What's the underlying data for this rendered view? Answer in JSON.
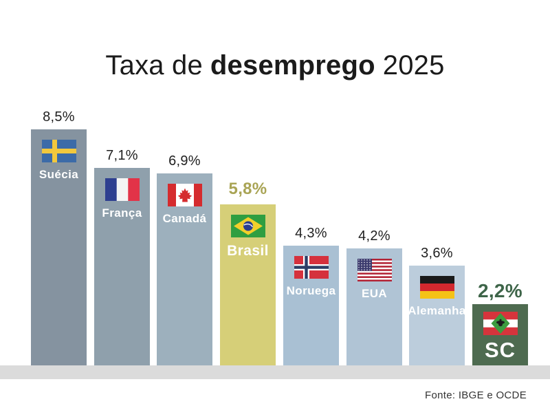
{
  "title": {
    "prefix": "Taxa de",
    "highlight": "desemprego",
    "suffix": "2025"
  },
  "footer": {
    "source": "Fonte: IBGE e OCDE"
  },
  "colors": {
    "background": "#ffffff",
    "floor": "#dbdbdb",
    "title": "#1b1b1b",
    "footer": "#333333",
    "brasil_accent": "#a9a455",
    "sc_accent": "#3e6549"
  },
  "chart_data": {
    "type": "bar",
    "title": "Taxa de desemprego 2025",
    "unit": "percent",
    "ylim": [
      0,
      9
    ],
    "grid": false,
    "legend": "none",
    "source": "Fonte: IBGE e OCDE",
    "categories": [
      "Suécia",
      "França",
      "Canadá",
      "Brasil",
      "Noruega",
      "EUA",
      "Alemanha",
      "SC"
    ],
    "values": [
      8.5,
      7.1,
      6.9,
      5.8,
      4.3,
      4.2,
      3.6,
      2.2
    ],
    "bars": [
      {
        "label": "Suécia",
        "value": 8.5,
        "value_label": "8,5%",
        "color": "#8593a0",
        "value_color": "#1f1f1f",
        "icon": "sweden-flag-icon"
      },
      {
        "label": "França",
        "value": 7.1,
        "value_label": "7,1%",
        "color": "#8fa0ac",
        "value_color": "#1f1f1f",
        "icon": "france-flag-icon"
      },
      {
        "label": "Canadá",
        "value": 6.9,
        "value_label": "6,9%",
        "color": "#9db0bd",
        "value_color": "#1f1f1f",
        "icon": "canada-flag-icon"
      },
      {
        "label": "Brasil",
        "value": 5.8,
        "value_label": "5,8%",
        "color": "#d6cf78",
        "value_color": "#a9a455",
        "icon": "brazil-flag-icon",
        "modifier": "brasil"
      },
      {
        "label": "Noruega",
        "value": 4.3,
        "value_label": "4,3%",
        "color": "#a9c0d3",
        "value_color": "#1f1f1f",
        "icon": "norway-flag-icon"
      },
      {
        "label": "EUA",
        "value": 4.2,
        "value_label": "4,2%",
        "color": "#b0c4d5",
        "value_color": "#1f1f1f",
        "icon": "usa-flag-icon"
      },
      {
        "label": "Alemanha",
        "value": 3.6,
        "value_label": "3,6%",
        "color": "#bccddc",
        "value_color": "#1f1f1f",
        "icon": "germany-flag-icon"
      },
      {
        "label": "SC",
        "value": 2.2,
        "value_label": "2,2%",
        "color": "#4e6b50",
        "value_color": "#3e6549",
        "icon": "santa-catarina-flag-icon",
        "modifier": "sc"
      }
    ]
  }
}
